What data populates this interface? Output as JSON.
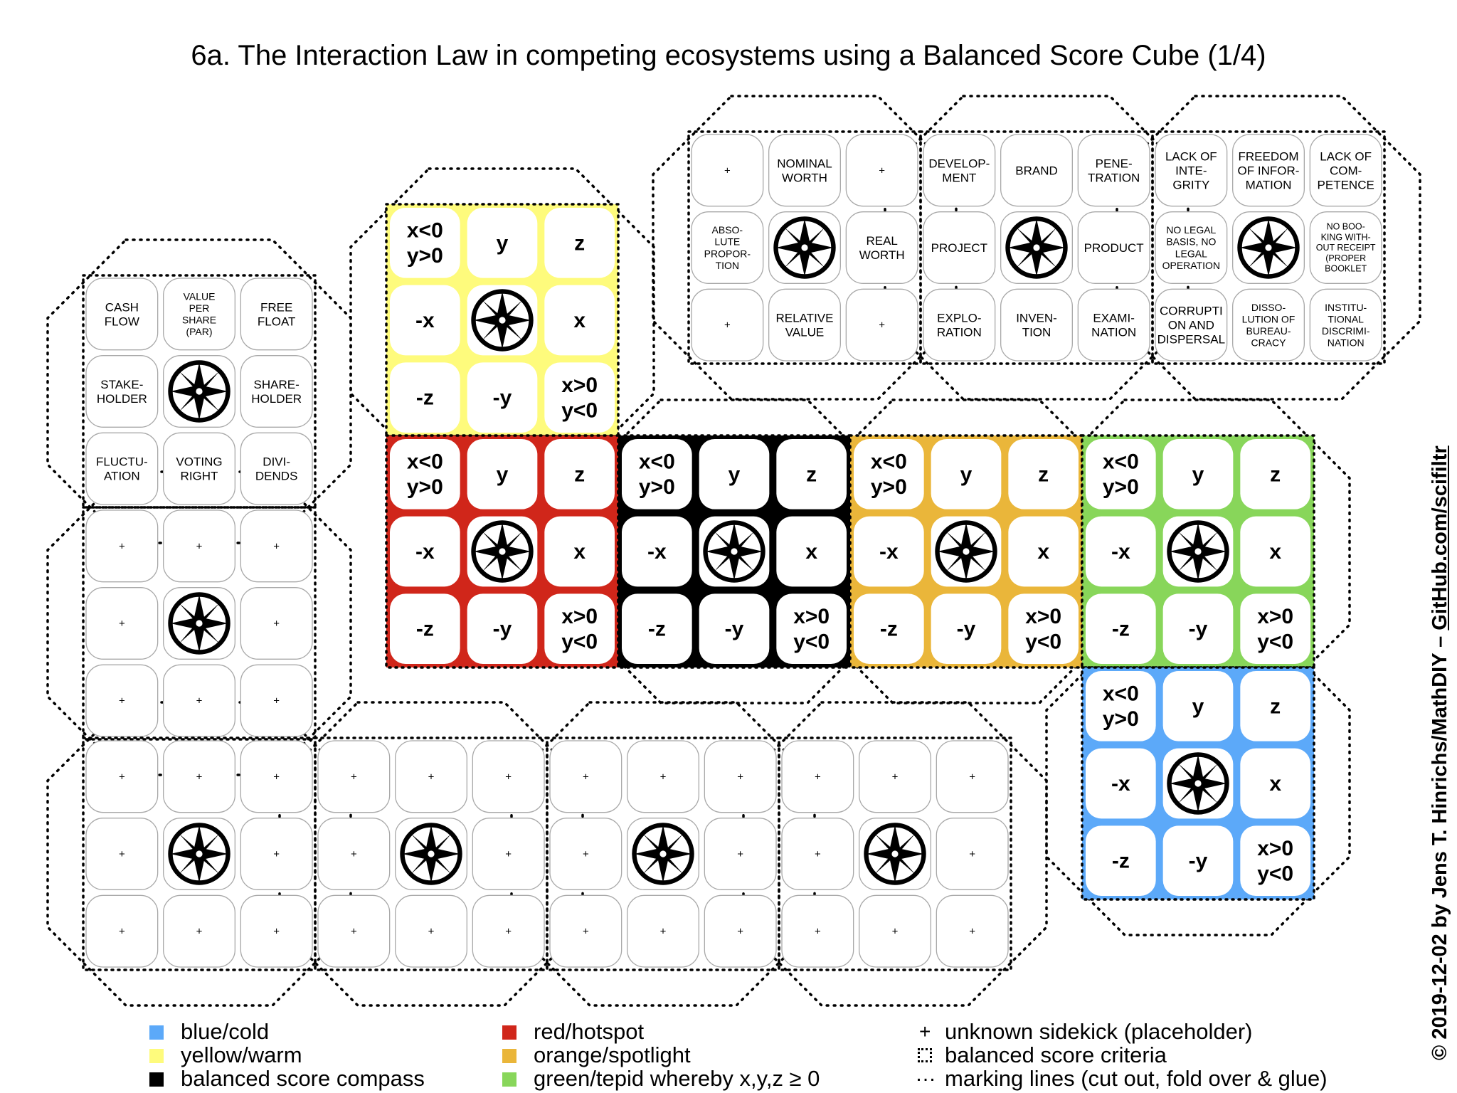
{
  "title": "6a. The Interaction Law in competing ecosystems using a Balanced Score Cube (1/4)",
  "credit": {
    "prefix": "© 2019-12-02 by Jens T. Hinrichs/MathDIY – ",
    "link": "GitHub.com/scifiltr"
  },
  "colors": {
    "yellow": "#fefb7c",
    "red": "#d0261a",
    "black": "#000000",
    "orange": "#eab63a",
    "green": "#88d65a",
    "blue": "#5ca9f9"
  },
  "colored_face_labels": [
    "x<0\ny>0",
    "y",
    "z",
    "-x",
    "compass",
    "x",
    "-z",
    "-y",
    "x>0\ny<0"
  ],
  "faces": [
    {
      "name": "face-left-criteria",
      "style": "white",
      "cells": [
        "CASH\nFLOW",
        "VALUE\nPER\nSHARE\n(PAR)",
        "FREE\nFLOAT",
        "STAKE-\nHOLDER",
        "compass",
        "SHARE-\nHOLDER",
        "FLUCTU-\nATION",
        "VOTING\nRIGHT",
        "DIVI-\nDENDS"
      ]
    },
    {
      "name": "face-left-placeholder",
      "style": "white",
      "cells": [
        "+",
        "+",
        "+",
        "+",
        "compass",
        "+",
        "+",
        "+",
        "+"
      ]
    },
    {
      "name": "face-bottom-1",
      "style": "white",
      "cells": [
        "+",
        "+",
        "+",
        "+",
        "compass",
        "+",
        "+",
        "+",
        "+"
      ]
    },
    {
      "name": "face-bottom-2",
      "style": "white",
      "cells": [
        "+",
        "+",
        "+",
        "+",
        "compass",
        "+",
        "+",
        "+",
        "+"
      ]
    },
    {
      "name": "face-bottom-3",
      "style": "white",
      "cells": [
        "+",
        "+",
        "+",
        "+",
        "compass",
        "+",
        "+",
        "+",
        "+"
      ]
    },
    {
      "name": "face-bottom-4",
      "style": "white",
      "cells": [
        "+",
        "+",
        "+",
        "+",
        "compass",
        "+",
        "+",
        "+",
        "+"
      ]
    },
    {
      "name": "face-top-worth",
      "style": "white",
      "cells": [
        "+",
        "NOMINAL\nWORTH",
        "+",
        "ABSO-\nLUTE\nPROPOR-\nTION",
        "compass",
        "REAL\nWORTH",
        "+",
        "RELATIVE\nVALUE",
        "+"
      ]
    },
    {
      "name": "face-top-brand",
      "style": "white",
      "cells": [
        "DEVELOP-\nMENT",
        "BRAND",
        "PENE-\nTRATION",
        "PROJECT",
        "compass",
        "PRODUCT",
        "EXPLO-\nRATION",
        "INVEN-\nTION",
        "EXAMI-\nNATION"
      ]
    },
    {
      "name": "face-top-integrity",
      "style": "white",
      "cells": [
        "LACK OF\nINTE-\nGRITY",
        "FREEDOM\nOF INFOR-\nMATION",
        "LACK OF\nCOM-\nPETENCE",
        "NO LEGAL\nBASIS, NO\nLEGAL\nOPERATION",
        "compass",
        "NO BOO-\nKING WITH-\nOUT RECEIPT\n(PROPER\nBOOKLET",
        "CORRUPTI\nON AND\nDISPERSAL",
        "DISSO-\nLUTION OF\nBUREAU-\nCRACY",
        "INSTITU-\nTIONAL\nDISCRIMI-\nNATION"
      ]
    },
    {
      "name": "face-yellow",
      "style": "yellow"
    },
    {
      "name": "face-red",
      "style": "red"
    },
    {
      "name": "face-black",
      "style": "black"
    },
    {
      "name": "face-orange",
      "style": "orange"
    },
    {
      "name": "face-green",
      "style": "green"
    },
    {
      "name": "face-blue",
      "style": "blue"
    }
  ],
  "legend": {
    "col1": [
      {
        "color": "#5ca9f9",
        "label": "blue/cold"
      },
      {
        "color": "#fefb7c",
        "label": "yellow/warm"
      },
      {
        "color": "#000000",
        "label": "balanced score compass"
      }
    ],
    "col2": [
      {
        "color": "#d0261a",
        "label": "red/hotspot"
      },
      {
        "color": "#eab63a",
        "label": "orange/spotlight"
      },
      {
        "color": "#88d65a",
        "label": "green/tepid whereby x,y,z ≥ 0"
      }
    ],
    "col3": [
      {
        "symbol": "+",
        "label": "unknown sidekick (placeholder)"
      },
      {
        "symbol": "box",
        "label": "balanced score criteria"
      },
      {
        "symbol": "…",
        "label": "marking lines (cut out, fold over & glue)"
      }
    ]
  }
}
